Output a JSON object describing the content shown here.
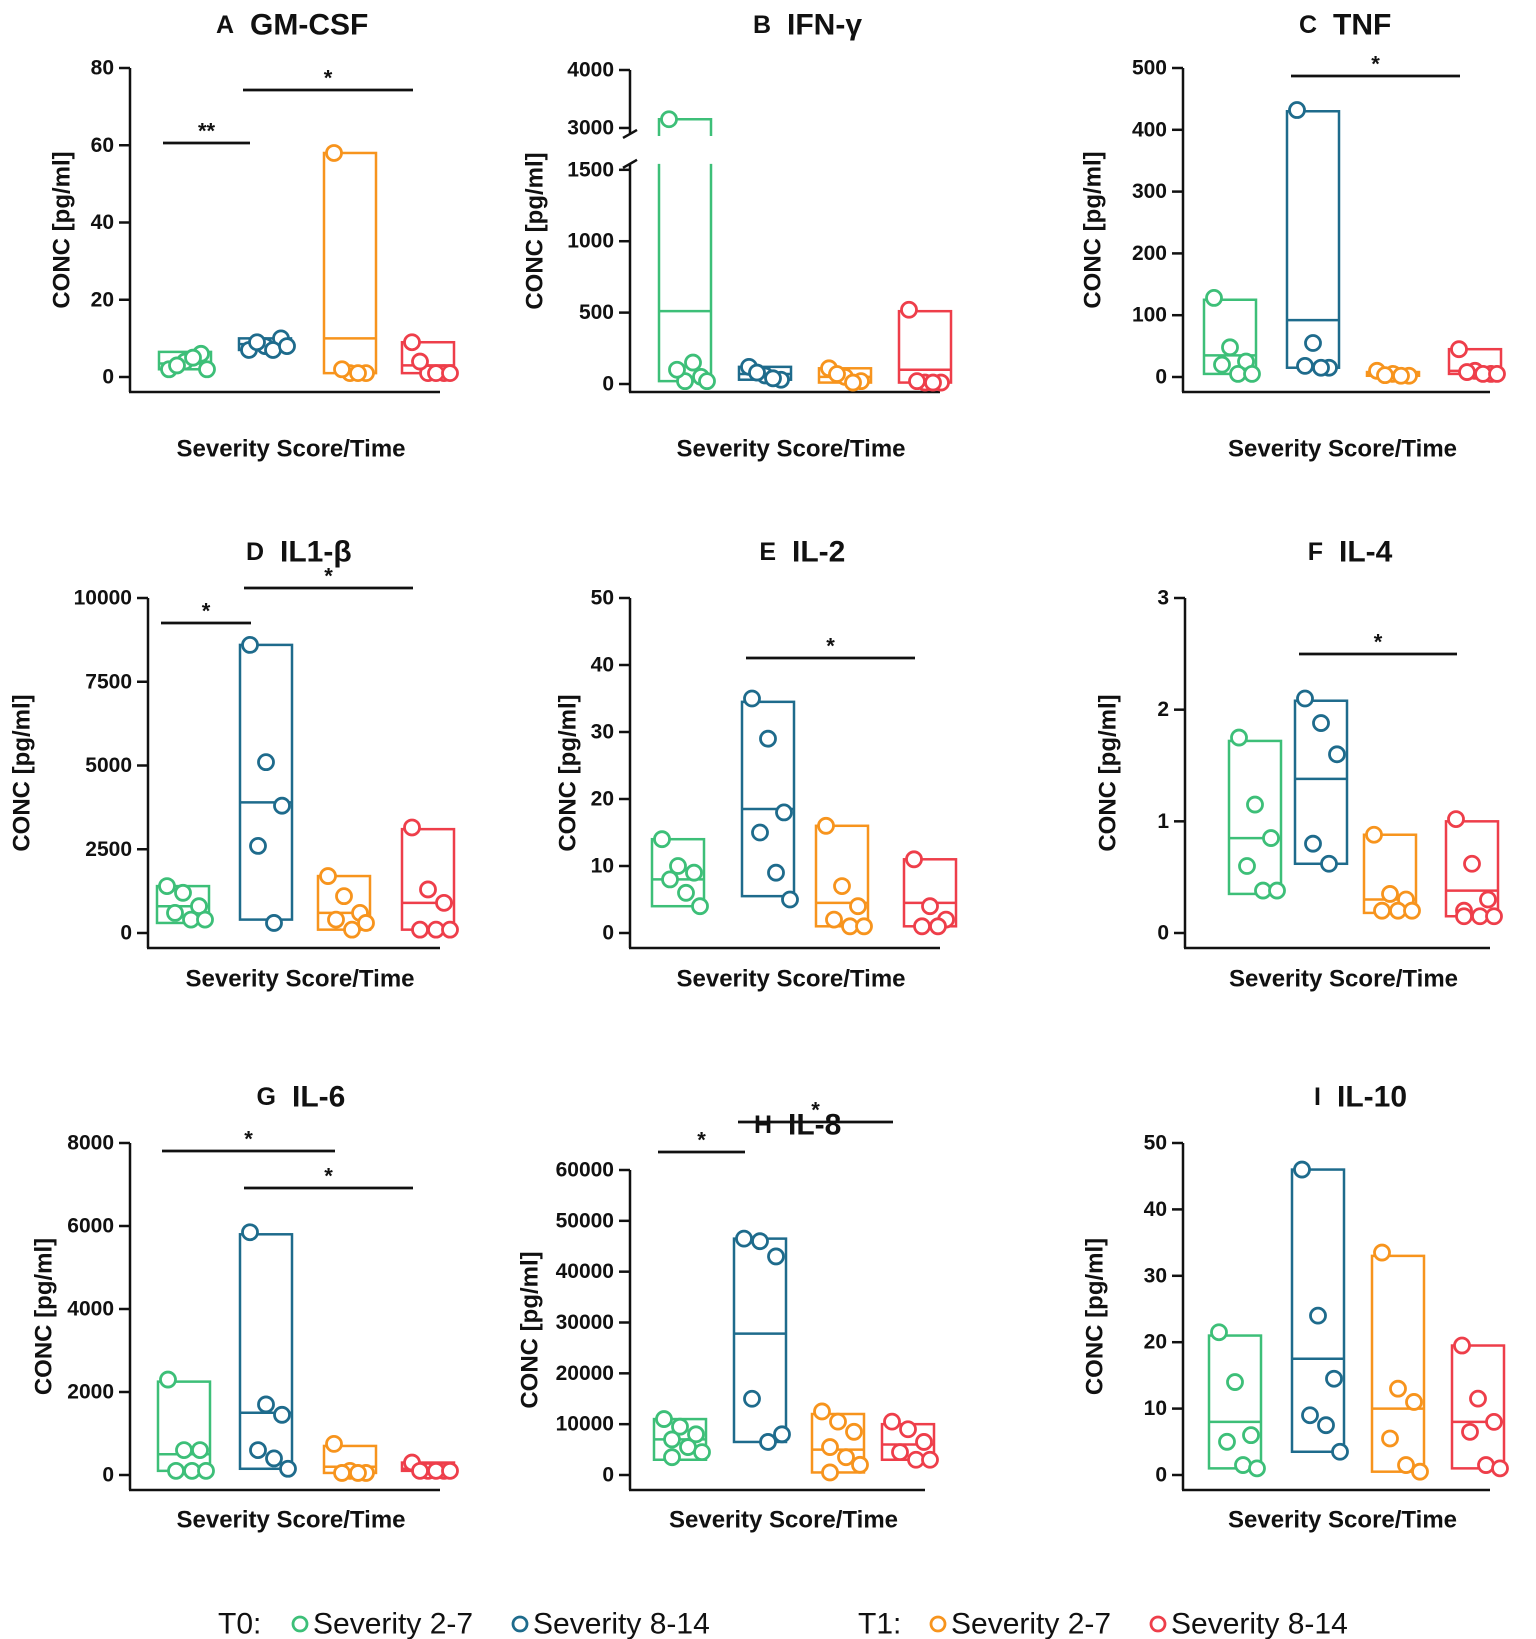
{
  "legend": {
    "groups": [
      {
        "label": "T0:",
        "items": [
          {
            "label": "Severity 2-7",
            "color": "#3dbf78"
          },
          {
            "label": "Severity 8-14",
            "color": "#1e6b8c"
          }
        ]
      },
      {
        "label": "T1:",
        "items": [
          {
            "label": "Severity 2-7",
            "color": "#f7941d"
          },
          {
            "label": "Severity 8-14",
            "color": "#ee3e4a"
          }
        ]
      }
    ]
  },
  "chart_data": [
    {
      "type": "scatter",
      "letter": "A",
      "title": "GM-CSF",
      "ylabel": "CONC [pg/ml]",
      "xlabel": "Severity Score/Time",
      "ylim": [
        0,
        80
      ],
      "yticks": [
        0,
        20,
        40,
        60,
        80
      ],
      "groups": [
        {
          "name": "T0 Severity 2-7",
          "color": "#3dbf78",
          "values": [
            2,
            4,
            6,
            3,
            5,
            2
          ],
          "box": [
            2,
            6.5
          ],
          "median": 3.5
        },
        {
          "name": "T0 Severity 8-14",
          "color": "#1e6b8c",
          "values": [
            7,
            8,
            10,
            9,
            7,
            8
          ],
          "box": [
            7,
            10
          ],
          "median": 8.5
        },
        {
          "name": "T1 Severity 2-7",
          "color": "#f7941d",
          "values": [
            58,
            1,
            1,
            2,
            1
          ],
          "box": [
            1,
            58
          ],
          "median": 10
        },
        {
          "name": "T1 Severity 8-14",
          "color": "#ee3e4a",
          "values": [
            9,
            1,
            1,
            4,
            1,
            1
          ],
          "box": [
            1,
            9
          ],
          "median": 3
        }
      ],
      "significance": [
        {
          "from": 0,
          "to": 1,
          "label": "**"
        },
        {
          "from": 1,
          "to": 3,
          "label": "*"
        }
      ]
    },
    {
      "type": "scatter",
      "letter": "B",
      "title": "IFN-γ",
      "ylabel": "CONC [pg/ml]",
      "xlabel": "Severity Score/Time",
      "ylim": [
        0,
        4000
      ],
      "yticks": [
        0,
        500,
        1000,
        1500,
        3000,
        4000
      ],
      "axis_break": [
        1500,
        3000
      ],
      "groups": [
        {
          "name": "T0 Severity 2-7",
          "color": "#3dbf78",
          "values": [
            3150,
            20,
            50,
            100,
            150,
            20
          ],
          "box": [
            20,
            3150
          ],
          "median": 510
        },
        {
          "name": "T0 Severity 8-14",
          "color": "#1e6b8c",
          "values": [
            120,
            60,
            30,
            80,
            40
          ],
          "box": [
            30,
            120
          ],
          "median": 70
        },
        {
          "name": "T1 Severity 2-7",
          "color": "#f7941d",
          "values": [
            110,
            50,
            20,
            70,
            10
          ],
          "box": [
            10,
            110
          ],
          "median": 50
        },
        {
          "name": "T1 Severity 8-14",
          "color": "#ee3e4a",
          "values": [
            520,
            10,
            10,
            20,
            10
          ],
          "box": [
            10,
            510
          ],
          "median": 100
        }
      ],
      "significance": []
    },
    {
      "type": "scatter",
      "letter": "C",
      "title": "TNF",
      "ylabel": "CONC [pg/ml]",
      "xlabel": "Severity Score/Time",
      "ylim": [
        0,
        500
      ],
      "yticks": [
        0,
        100,
        200,
        300,
        400,
        500
      ],
      "groups": [
        {
          "name": "T0 Severity 2-7",
          "color": "#3dbf78",
          "values": [
            128,
            48,
            25,
            20,
            5,
            5
          ],
          "box": [
            5,
            125
          ],
          "median": 35
        },
        {
          "name": "T0 Severity 8-14",
          "color": "#1e6b8c",
          "values": [
            432,
            55,
            15,
            18,
            15
          ],
          "box": [
            15,
            430
          ],
          "median": 92
        },
        {
          "name": "T1 Severity 2-7",
          "color": "#f7941d",
          "values": [
            10,
            5,
            2,
            3,
            2
          ],
          "box": [
            2,
            8
          ],
          "median": 4
        },
        {
          "name": "T1 Severity 8-14",
          "color": "#ee3e4a",
          "values": [
            45,
            10,
            5,
            8,
            5,
            5
          ],
          "box": [
            5,
            45
          ],
          "median": 10
        }
      ],
      "significance": [
        {
          "from": 1,
          "to": 3,
          "label": "*"
        }
      ]
    },
    {
      "type": "scatter",
      "letter": "D",
      "title": "IL1-β",
      "ylabel": "CONC [pg/ml]",
      "xlabel": "Severity Score/Time",
      "ylim": [
        0,
        10000
      ],
      "yticks": [
        0,
        2500,
        5000,
        7500,
        10000
      ],
      "groups": [
        {
          "name": "T0 Severity 2-7",
          "color": "#3dbf78",
          "values": [
            1400,
            1200,
            800,
            600,
            400,
            400
          ],
          "box": [
            300,
            1400
          ],
          "median": 800
        },
        {
          "name": "T0 Severity 8-14",
          "color": "#1e6b8c",
          "values": [
            8600,
            5100,
            3800,
            2600,
            300
          ],
          "box": [
            400,
            8600
          ],
          "median": 3900
        },
        {
          "name": "T1 Severity 2-7",
          "color": "#f7941d",
          "values": [
            1700,
            1100,
            600,
            400,
            100,
            300
          ],
          "box": [
            100,
            1700
          ],
          "median": 600
        },
        {
          "name": "T1 Severity 8-14",
          "color": "#ee3e4a",
          "values": [
            3150,
            1300,
            900,
            100,
            100,
            100
          ],
          "box": [
            100,
            3100
          ],
          "median": 900
        }
      ],
      "significance": [
        {
          "from": 0,
          "to": 1,
          "label": "*"
        },
        {
          "from": 1,
          "to": 3,
          "label": "*"
        }
      ]
    },
    {
      "type": "scatter",
      "letter": "E",
      "title": "IL-2",
      "ylabel": "CONC [pg/ml]",
      "xlabel": "Severity Score/Time",
      "ylim": [
        0,
        50
      ],
      "yticks": [
        0,
        10,
        20,
        30,
        40,
        50
      ],
      "groups": [
        {
          "name": "T0 Severity 2-7",
          "color": "#3dbf78",
          "values": [
            14,
            10,
            9,
            8,
            6,
            4
          ],
          "box": [
            4,
            14
          ],
          "median": 8
        },
        {
          "name": "T0 Severity 8-14",
          "color": "#1e6b8c",
          "values": [
            35,
            29,
            18,
            15,
            9,
            5
          ],
          "box": [
            5.5,
            34.5
          ],
          "median": 18.5
        },
        {
          "name": "T1 Severity 2-7",
          "color": "#f7941d",
          "values": [
            16,
            7,
            4,
            2,
            1,
            1
          ],
          "box": [
            1,
            16
          ],
          "median": 4.5
        },
        {
          "name": "T1 Severity 8-14",
          "color": "#ee3e4a",
          "values": [
            11,
            4,
            2,
            1,
            1
          ],
          "box": [
            1,
            11
          ],
          "median": 4.5
        }
      ],
      "significance": [
        {
          "from": 1,
          "to": 3,
          "label": "*"
        }
      ]
    },
    {
      "type": "scatter",
      "letter": "F",
      "title": "IL-4",
      "ylabel": "CONC [pg/ml]",
      "xlabel": "Severity Score/Time",
      "ylim": [
        0,
        3
      ],
      "yticks": [
        0,
        1,
        2,
        3
      ],
      "groups": [
        {
          "name": "T0 Severity 2-7",
          "color": "#3dbf78",
          "values": [
            1.75,
            1.15,
            0.85,
            0.6,
            0.38,
            0.38
          ],
          "box": [
            0.35,
            1.72
          ],
          "median": 0.85
        },
        {
          "name": "T0 Severity 8-14",
          "color": "#1e6b8c",
          "values": [
            2.1,
            1.88,
            1.6,
            0.8,
            0.62
          ],
          "box": [
            0.62,
            2.08
          ],
          "median": 1.38
        },
        {
          "name": "T1 Severity 2-7",
          "color": "#f7941d",
          "values": [
            0.88,
            0.35,
            0.3,
            0.2,
            0.2,
            0.2
          ],
          "box": [
            0.18,
            0.88
          ],
          "median": 0.3
        },
        {
          "name": "T1 Severity 8-14",
          "color": "#ee3e4a",
          "values": [
            1.02,
            0.62,
            0.3,
            0.2,
            0.15,
            0.15,
            0.15
          ],
          "box": [
            0.15,
            1.0
          ],
          "median": 0.38
        }
      ],
      "significance": [
        {
          "from": 1,
          "to": 3,
          "label": "*"
        }
      ]
    },
    {
      "type": "scatter",
      "letter": "G",
      "title": "IL-6",
      "ylabel": "CONC [pg/ml]",
      "xlabel": "Severity Score/Time",
      "ylim": [
        0,
        8000
      ],
      "yticks": [
        0,
        2000,
        4000,
        6000,
        8000
      ],
      "groups": [
        {
          "name": "T0 Severity 2-7",
          "color": "#3dbf78",
          "values": [
            2300,
            600,
            600,
            100,
            100,
            100
          ],
          "box": [
            100,
            2250
          ],
          "median": 500
        },
        {
          "name": "T0 Severity 8-14",
          "color": "#1e6b8c",
          "values": [
            5850,
            1700,
            1450,
            600,
            400,
            150
          ],
          "box": [
            150,
            5800
          ],
          "median": 1500
        },
        {
          "name": "T1 Severity 2-7",
          "color": "#f7941d",
          "values": [
            750,
            100,
            50,
            50,
            50
          ],
          "box": [
            50,
            700
          ],
          "median": 200
        },
        {
          "name": "T1 Severity 8-14",
          "color": "#ee3e4a",
          "values": [
            300,
            100,
            100,
            100,
            100,
            100
          ],
          "box": [
            100,
            300
          ],
          "median": 150
        }
      ],
      "significance": [
        {
          "from": 0,
          "to": 2,
          "label": "*"
        },
        {
          "from": 1,
          "to": 3,
          "label": "*"
        }
      ]
    },
    {
      "type": "scatter",
      "letter": "H",
      "title": "IL-8",
      "ylabel": "CONC [pg/ml]",
      "xlabel": "Severity Score/Time",
      "ylim": [
        0,
        60000
      ],
      "yticks": [
        0,
        10000,
        20000,
        30000,
        40000,
        50000,
        60000
      ],
      "groups": [
        {
          "name": "T0 Severity 2-7",
          "color": "#3dbf78",
          "values": [
            11000,
            9500,
            8000,
            7000,
            5500,
            4500,
            3500
          ],
          "box": [
            3000,
            11000
          ],
          "median": 7000
        },
        {
          "name": "T0 Severity 8-14",
          "color": "#1e6b8c",
          "values": [
            46500,
            46000,
            43000,
            15000,
            6500,
            8000
          ],
          "box": [
            6500,
            46500
          ],
          "median": 27800
        },
        {
          "name": "T1 Severity 2-7",
          "color": "#f7941d",
          "values": [
            12500,
            10500,
            8500,
            5500,
            3500,
            2000,
            500
          ],
          "box": [
            500,
            12000
          ],
          "median": 5000
        },
        {
          "name": "T1 Severity 8-14",
          "color": "#ee3e4a",
          "values": [
            10500,
            9000,
            6500,
            4500,
            3000,
            3000
          ],
          "box": [
            3000,
            10000
          ],
          "median": 6000
        }
      ],
      "significance": [
        {
          "from": 0,
          "to": 1,
          "label": "*"
        },
        {
          "from": 1,
          "to": 3,
          "label": "*"
        }
      ]
    },
    {
      "type": "scatter",
      "letter": "I",
      "title": "IL-10",
      "ylabel": "CONC [pg/ml]",
      "xlabel": "Severity Score/Time",
      "ylim": [
        0,
        50
      ],
      "yticks": [
        0,
        10,
        20,
        30,
        40,
        50
      ],
      "groups": [
        {
          "name": "T0 Severity 2-7",
          "color": "#3dbf78",
          "values": [
            21.5,
            14,
            6,
            5,
            1.5,
            1
          ],
          "box": [
            1,
            21
          ],
          "median": 8
        },
        {
          "name": "T0 Severity 8-14",
          "color": "#1e6b8c",
          "values": [
            46,
            24,
            14.5,
            9,
            7.5,
            3.5
          ],
          "box": [
            3.5,
            46
          ],
          "median": 17.5
        },
        {
          "name": "T1 Severity 2-7",
          "color": "#f7941d",
          "values": [
            33.5,
            13,
            11,
            5.5,
            1.5,
            0.5
          ],
          "box": [
            0.5,
            33
          ],
          "median": 10
        },
        {
          "name": "T1 Severity 8-14",
          "color": "#ee3e4a",
          "values": [
            19.5,
            11.5,
            8,
            6.5,
            1.5,
            1
          ],
          "box": [
            1,
            19.5
          ],
          "median": 8
        }
      ],
      "significance": []
    }
  ]
}
